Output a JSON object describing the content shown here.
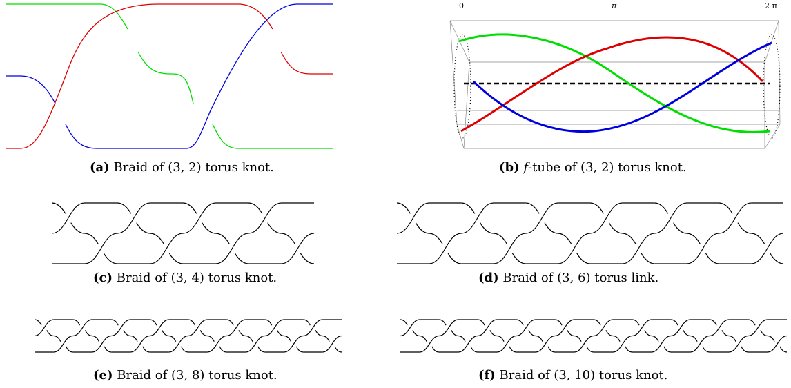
{
  "figures": {
    "a": {
      "label": "(a)",
      "caption": "Braid of (3, 2) torus knot."
    },
    "b": {
      "label": "(b)",
      "fvar": "f",
      "caption": "-tube of (3, 2) torus knot.",
      "ticks": [
        "0",
        "π",
        "2 π"
      ]
    },
    "c": {
      "label": "(c)",
      "caption": "Braid of (3, 4) torus knot."
    },
    "d": {
      "label": "(d)",
      "caption": "Braid of (3, 6) torus link."
    },
    "e": {
      "label": "(e)",
      "caption": "Braid of (3, 8) torus knot."
    },
    "f": {
      "label": "(f)",
      "caption": "Braid of (3, 10) torus knot."
    }
  },
  "colors": {
    "green": "#00dd00",
    "red": "#dd0000",
    "blue": "#0000dd",
    "black": "#000000"
  }
}
